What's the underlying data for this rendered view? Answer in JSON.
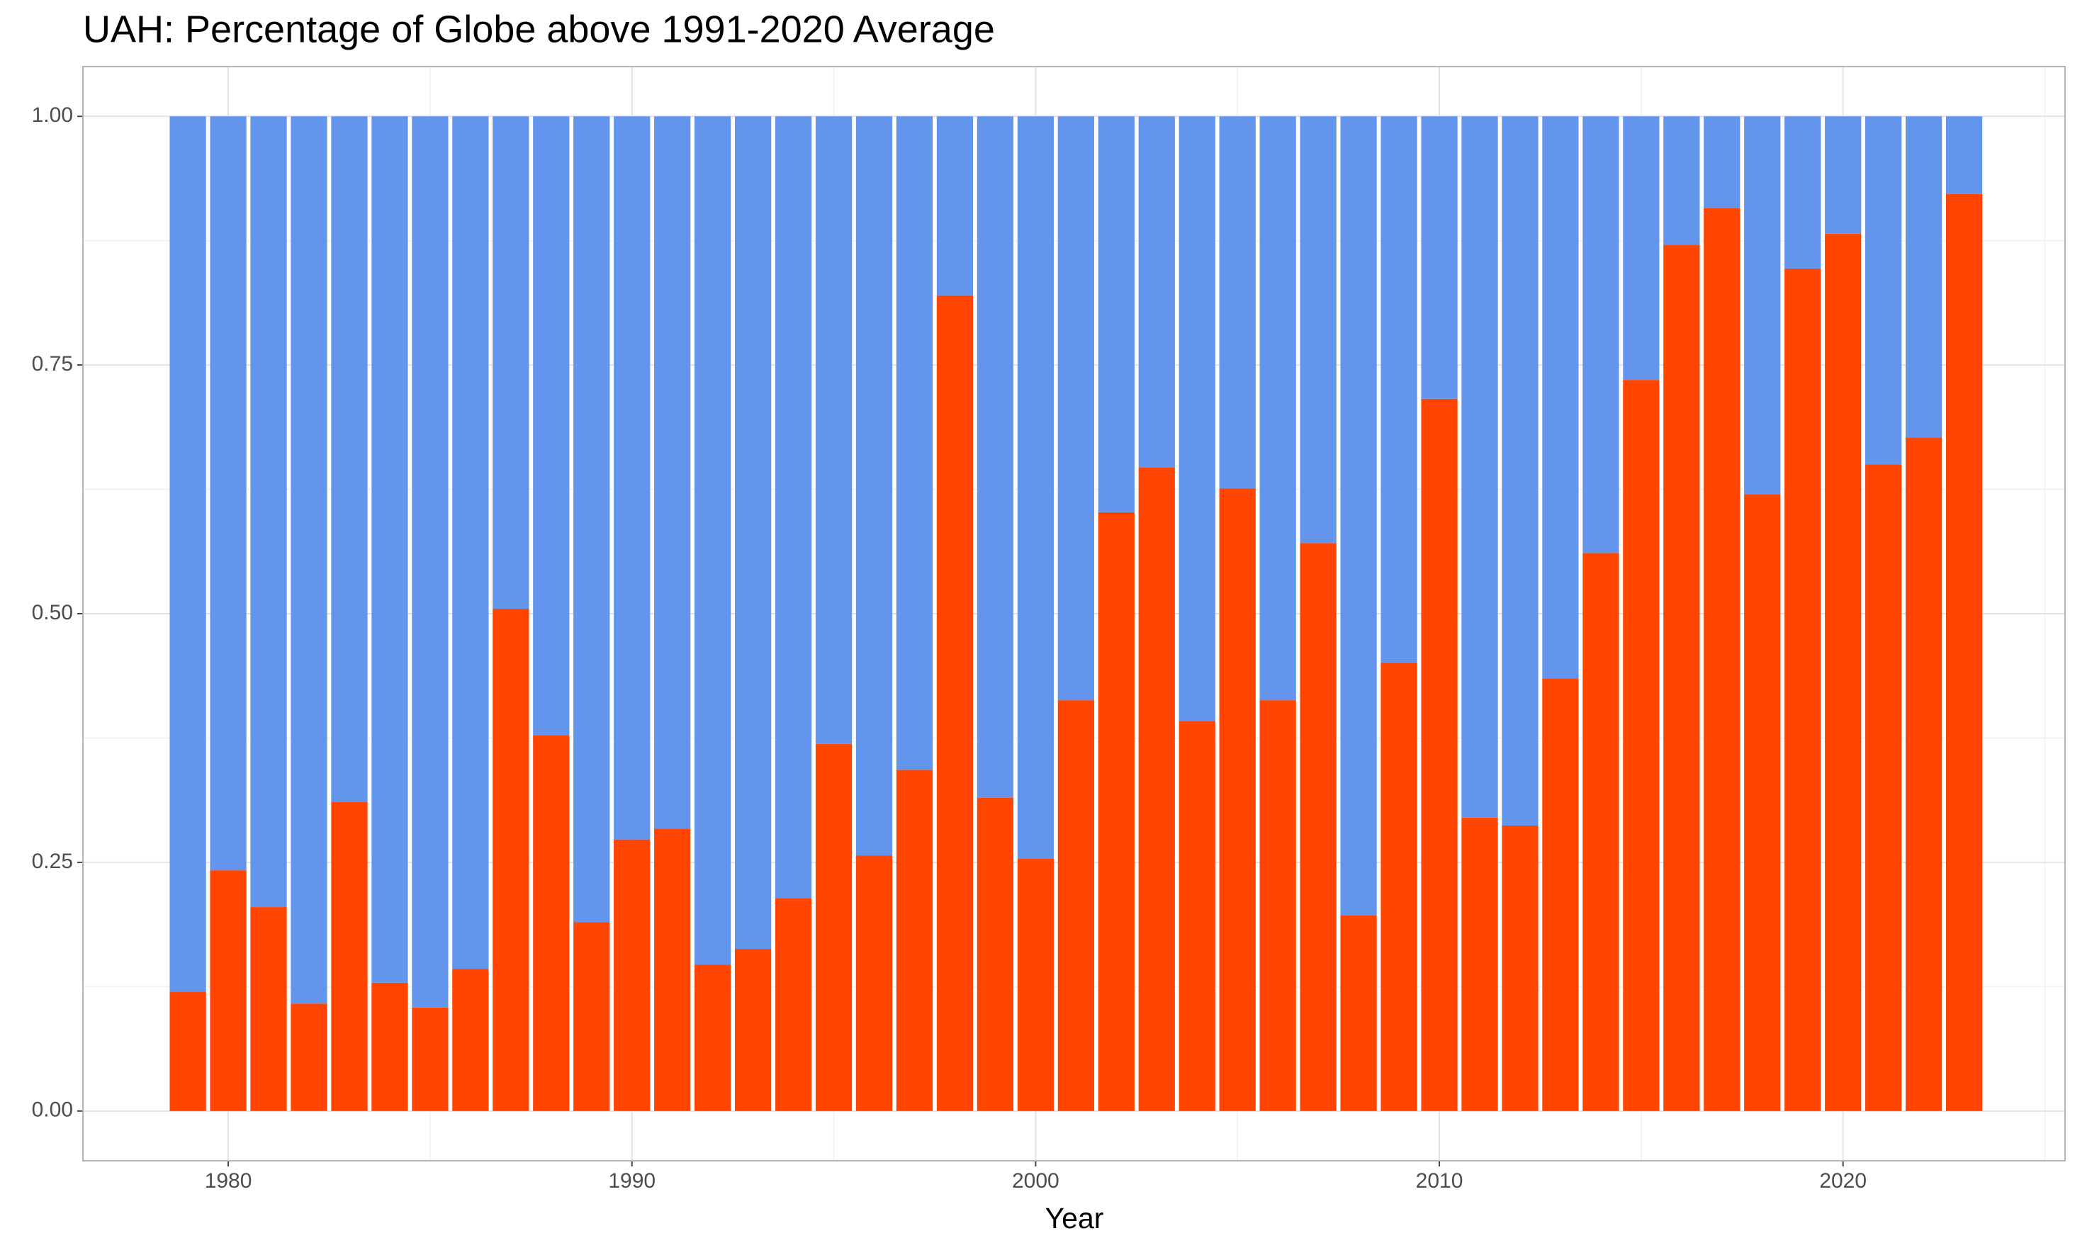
{
  "chart_data": {
    "type": "stacked_bar",
    "title": "UAH: Percentage of Globe above 1991-2020 Average",
    "xlabel": "Year",
    "x": [
      1979,
      1980,
      1981,
      1982,
      1983,
      1984,
      1985,
      1986,
      1987,
      1988,
      1989,
      1990,
      1991,
      1992,
      1993,
      1994,
      1995,
      1996,
      1997,
      1998,
      1999,
      2000,
      2001,
      2002,
      2003,
      2004,
      2005,
      2006,
      2007,
      2008,
      2009,
      2010,
      2011,
      2012,
      2013,
      2014,
      2015,
      2016,
      2017,
      2018,
      2019,
      2020,
      2021,
      2022,
      2023
    ],
    "series": [
      {
        "color": "#FF4500",
        "values": [
          0.12,
          0.242,
          0.205,
          0.108,
          0.311,
          0.129,
          0.104,
          0.143,
          0.505,
          0.378,
          0.19,
          0.273,
          0.284,
          0.147,
          0.163,
          0.214,
          0.369,
          0.257,
          0.343,
          0.82,
          0.315,
          0.254,
          0.413,
          0.602,
          0.647,
          0.392,
          0.626,
          0.413,
          0.571,
          0.197,
          0.451,
          0.716,
          0.295,
          0.287,
          0.435,
          0.561,
          0.735,
          0.871,
          0.908,
          0.62,
          0.847,
          0.882,
          0.65,
          0.677,
          0.922
        ]
      },
      {
        "color": "#6495ED",
        "values": [
          0.88,
          0.758,
          0.795,
          0.892,
          0.689,
          0.871,
          0.896,
          0.857,
          0.495,
          0.622,
          0.81,
          0.727,
          0.716,
          0.853,
          0.837,
          0.786,
          0.631,
          0.743,
          0.657,
          0.18,
          0.685,
          0.746,
          0.587,
          0.398,
          0.353,
          0.608,
          0.374,
          0.587,
          0.429,
          0.803,
          0.549,
          0.284,
          0.705,
          0.713,
          0.565,
          0.439,
          0.265,
          0.129,
          0.092,
          0.38,
          0.153,
          0.118,
          0.35,
          0.323,
          0.078
        ]
      }
    ],
    "bar_width": 0.9,
    "xlim": [
      1976.4,
      2025.5
    ],
    "xticks": [
      1980,
      1990,
      2000,
      2010,
      2020
    ],
    "ylim": [
      -0.05,
      1.05
    ],
    "yticks": [
      {
        "value": 0,
        "label": "0.00"
      },
      {
        "value": 0.25,
        "label": "0.25"
      },
      {
        "value": 0.5,
        "label": "0.50"
      },
      {
        "value": 0.75,
        "label": "0.75"
      },
      {
        "value": 1,
        "label": "1.00"
      }
    ],
    "grid": true,
    "minor_grid": true
  }
}
